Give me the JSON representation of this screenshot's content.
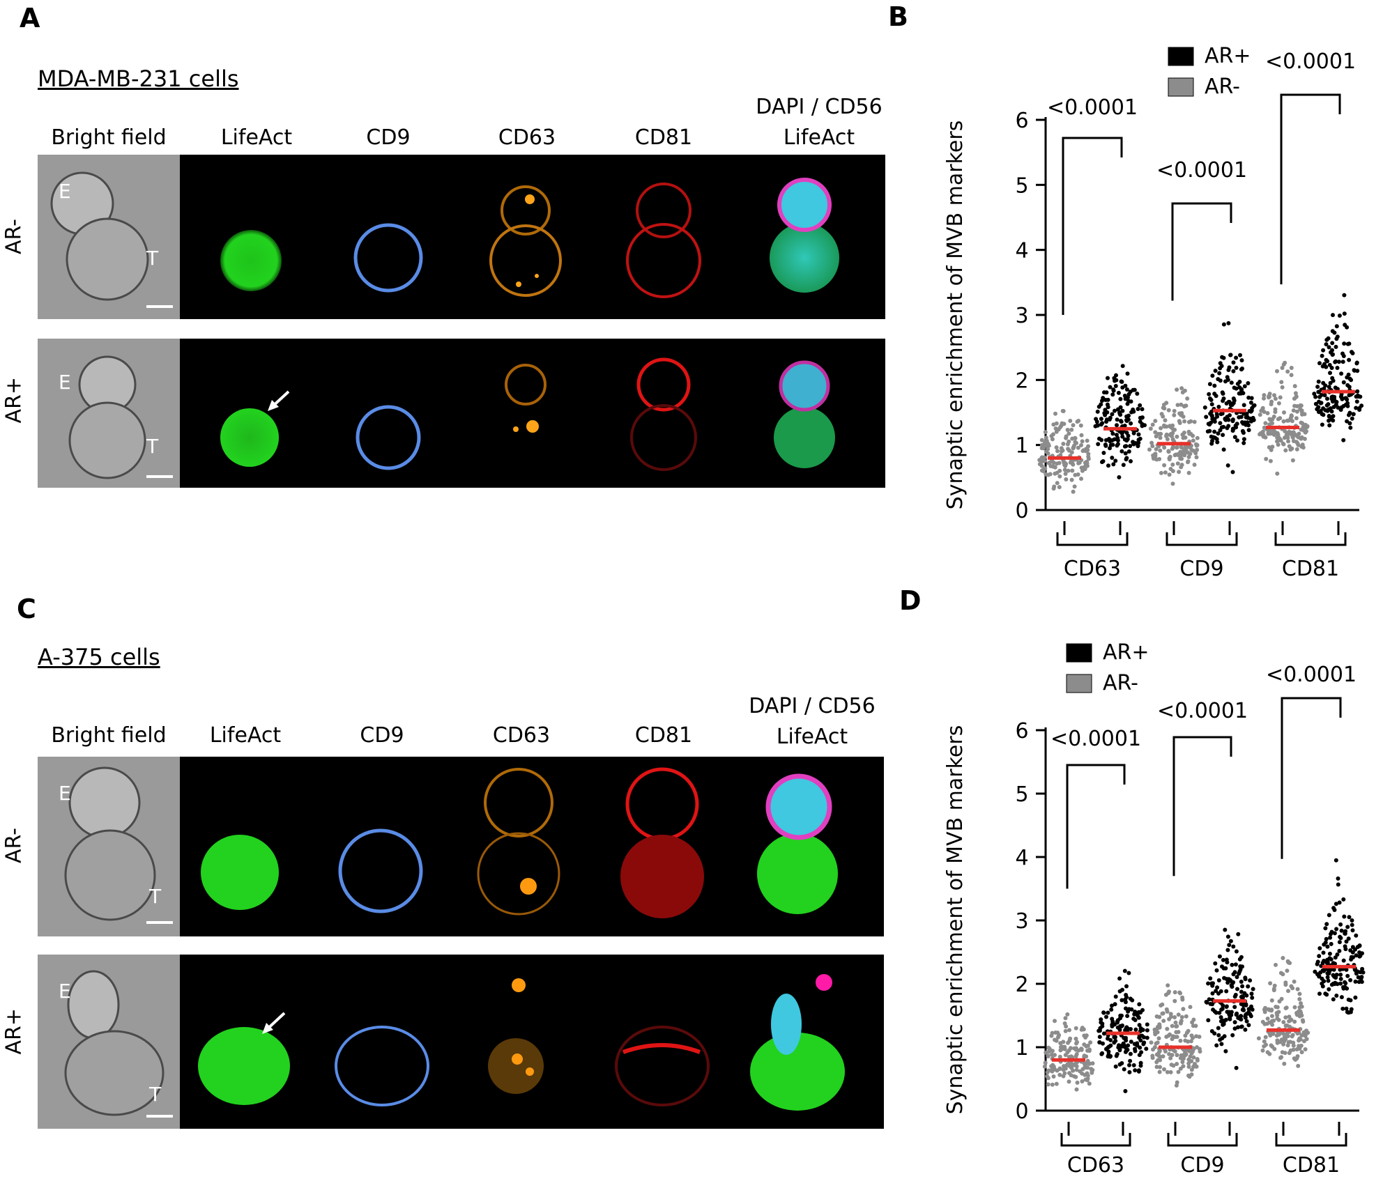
{
  "panels": {
    "A": {
      "letter": "A",
      "cell_line": "MDA-MB-231 cells",
      "columns": [
        "Bright field",
        "LifeAct",
        "CD9",
        "CD63",
        "CD81"
      ],
      "merge_label_line1": "DAPI / CD56",
      "merge_label_line2": "LifeAct",
      "rows": [
        "AR-",
        "AR+"
      ],
      "cell_labels": {
        "effector": "E",
        "target": "T"
      }
    },
    "C": {
      "letter": "C",
      "cell_line": "A-375 cells",
      "columns": [
        "Bright field",
        "LifeAct",
        "CD9",
        "CD63",
        "CD81"
      ],
      "merge_label_line1": "DAPI / CD56",
      "merge_label_line2": "LifeAct",
      "rows": [
        "AR-",
        "AR+"
      ],
      "cell_labels": {
        "effector": "E",
        "target": "T"
      }
    },
    "B": {
      "letter": "B"
    },
    "D": {
      "letter": "D"
    }
  },
  "colors": {
    "ar_plus": "#000000",
    "ar_minus": "#8c8c8c",
    "median": "#e8302a",
    "lifeact": "#22d21e",
    "cd9": "#5a8ce6",
    "cd63": "#ff9a10",
    "cd81": "#e81010",
    "dapi": "#3fc8e0",
    "cd56": "#e040c0"
  },
  "chart_data": [
    {
      "type": "scatter",
      "panel": "B",
      "ylabel": "Synaptic enrichment of MVB markers",
      "ylim": [
        0,
        6
      ],
      "yticks": [
        0,
        1,
        2,
        3,
        4,
        5,
        6
      ],
      "categories": [
        "CD63",
        "CD9",
        "CD81"
      ],
      "legend": {
        "placement": "top-right",
        "entries": [
          "AR+",
          "AR-"
        ]
      },
      "series": [
        {
          "name": "AR-",
          "medians": [
            0.8,
            1.02,
            1.27
          ]
        },
        {
          "name": "AR+",
          "medians": [
            1.25,
            1.53,
            1.82
          ]
        }
      ],
      "annotations": [
        {
          "category": "CD63",
          "text": "<0.0001"
        },
        {
          "category": "CD9",
          "text": "<0.0001"
        },
        {
          "category": "CD81",
          "text": "<0.0001"
        }
      ]
    },
    {
      "type": "scatter",
      "panel": "D",
      "ylabel": "Synaptic enrichment of MVB markers",
      "ylim": [
        0,
        6
      ],
      "yticks": [
        0,
        1,
        2,
        3,
        4,
        5,
        6
      ],
      "categories": [
        "CD63",
        "CD9",
        "CD81"
      ],
      "legend": {
        "placement": "top-left",
        "entries": [
          "AR+",
          "AR-"
        ]
      },
      "series": [
        {
          "name": "AR-",
          "medians": [
            0.8,
            1.0,
            1.27
          ]
        },
        {
          "name": "AR+",
          "medians": [
            1.22,
            1.73,
            2.27
          ]
        }
      ],
      "annotations": [
        {
          "category": "CD63",
          "text": "<0.0001"
        },
        {
          "category": "CD9",
          "text": "<0.0001"
        },
        {
          "category": "CD81",
          "text": "<0.0001"
        }
      ]
    }
  ]
}
